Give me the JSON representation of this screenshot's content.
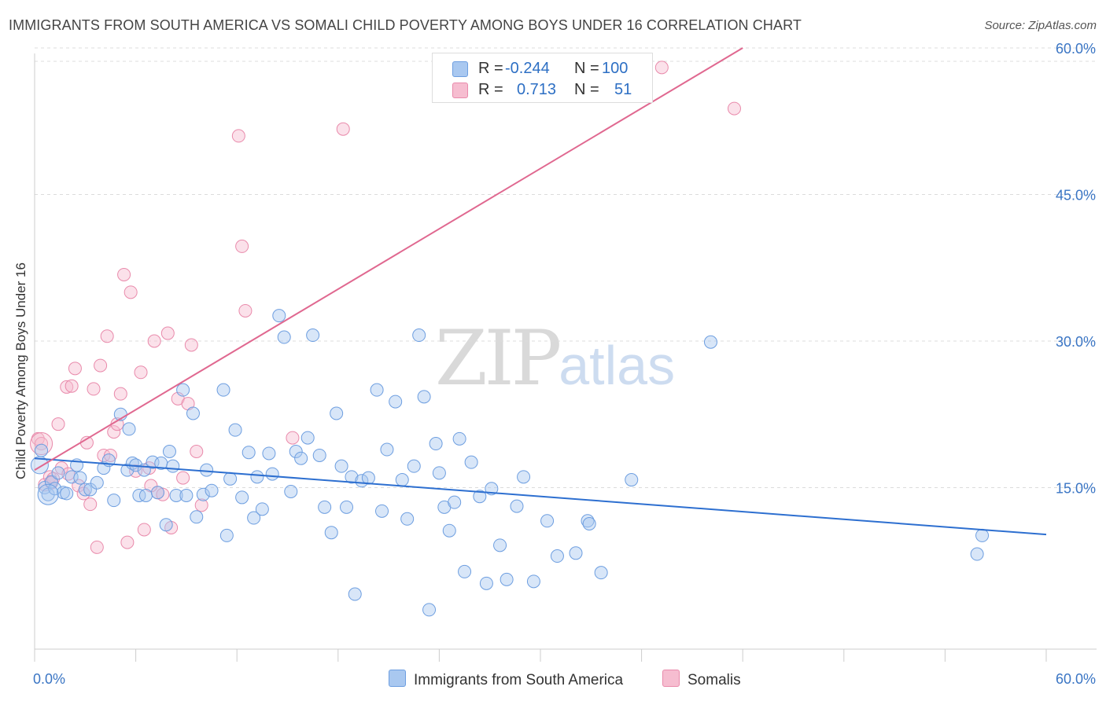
{
  "header": {
    "title": "IMMIGRANTS FROM SOUTH AMERICA VS SOMALI CHILD POVERTY AMONG BOYS UNDER 16 CORRELATION CHART",
    "source": "Source: ZipAtlas.com"
  },
  "watermark": {
    "zip": "ZIP",
    "atlas": "atlas"
  },
  "legend": {
    "r_label": "R =",
    "n_label": "N =",
    "rows": [
      {
        "r": "-0.244",
        "n": "100",
        "color": "#a9c8f0"
      },
      {
        "r": "0.713",
        "n": "51",
        "color": "#f6bdd0"
      }
    ]
  },
  "bottom_legend": [
    {
      "label": "Immigrants from South America",
      "color": "#a9c8f0"
    },
    {
      "label": "Somalis",
      "color": "#f6bdd0"
    }
  ],
  "chart_data": {
    "type": "scatter",
    "title": "IMMIGRANTS FROM SOUTH AMERICA VS SOMALI CHILD POVERTY AMONG BOYS UNDER 16 CORRELATION CHART",
    "xlabel": "",
    "ylabel": "Child Poverty Among Boys Under 16",
    "xlim": [
      0,
      60
    ],
    "ylim": [
      0,
      60
    ],
    "x_tick_labels": [
      "0.0%",
      "60.0%"
    ],
    "y_tick_labels": [
      "15.0%",
      "30.0%",
      "45.0%",
      "60.0%"
    ],
    "y_ticks": [
      15,
      30,
      45,
      60
    ],
    "x_minor_ticks": [
      0,
      6,
      12,
      18,
      24,
      30,
      36,
      42,
      48,
      54,
      60
    ],
    "grid": true,
    "legend_position": "top-center",
    "colors": {
      "blue_point": "#a9c8f0",
      "blue_edge": "#6d9ee0",
      "blue_line": "#2d6fd0",
      "pink_point": "#f6bdd0",
      "pink_edge": "#e98aab",
      "pink_line": "#e06890",
      "tick_label": "#3a75c4"
    },
    "series": [
      {
        "name": "Immigrants from South America",
        "r": -0.244,
        "n": 100,
        "trend": {
          "x0": 0,
          "y0": 18.0,
          "x1": 60,
          "y1": 10.2
        },
        "points": [
          [
            0.4,
            18.8
          ],
          [
            0.6,
            15.0
          ],
          [
            0.8,
            14.3
          ],
          [
            1.0,
            15.6
          ],
          [
            1.2,
            14.9
          ],
          [
            1.4,
            16.5
          ],
          [
            1.7,
            14.5
          ],
          [
            1.9,
            14.4
          ],
          [
            2.2,
            16.1
          ],
          [
            2.5,
            17.3
          ],
          [
            2.7,
            16.0
          ],
          [
            3.0,
            14.8
          ],
          [
            3.3,
            14.8
          ],
          [
            3.7,
            15.5
          ],
          [
            4.1,
            17.0
          ],
          [
            4.4,
            17.8
          ],
          [
            4.7,
            13.7
          ],
          [
            5.1,
            22.5
          ],
          [
            5.5,
            16.8
          ],
          [
            5.6,
            21.0
          ],
          [
            5.8,
            17.5
          ],
          [
            6.0,
            17.3
          ],
          [
            6.2,
            14.2
          ],
          [
            6.5,
            16.8
          ],
          [
            6.6,
            14.2
          ],
          [
            7.0,
            17.6
          ],
          [
            7.3,
            14.5
          ],
          [
            7.5,
            17.5
          ],
          [
            7.8,
            11.2
          ],
          [
            8.0,
            18.7
          ],
          [
            8.2,
            17.2
          ],
          [
            8.4,
            14.2
          ],
          [
            8.8,
            25.0
          ],
          [
            9.0,
            14.2
          ],
          [
            9.4,
            22.6
          ],
          [
            9.6,
            12.0
          ],
          [
            10.0,
            14.3
          ],
          [
            10.2,
            16.8
          ],
          [
            10.5,
            14.7
          ],
          [
            11.2,
            25.0
          ],
          [
            11.4,
            10.1
          ],
          [
            11.6,
            15.9
          ],
          [
            11.9,
            20.9
          ],
          [
            12.3,
            14.0
          ],
          [
            12.7,
            18.6
          ],
          [
            13.0,
            11.9
          ],
          [
            13.2,
            16.1
          ],
          [
            13.5,
            12.8
          ],
          [
            13.9,
            18.5
          ],
          [
            14.1,
            16.4
          ],
          [
            14.5,
            32.6
          ],
          [
            14.8,
            30.4
          ],
          [
            15.2,
            14.6
          ],
          [
            15.5,
            18.7
          ],
          [
            15.8,
            18.0
          ],
          [
            16.2,
            20.1
          ],
          [
            16.5,
            30.6
          ],
          [
            16.9,
            18.3
          ],
          [
            17.2,
            13.0
          ],
          [
            17.6,
            10.4
          ],
          [
            17.9,
            22.6
          ],
          [
            18.2,
            17.2
          ],
          [
            18.5,
            13.0
          ],
          [
            18.8,
            16.1
          ],
          [
            19.0,
            4.1
          ],
          [
            19.4,
            15.7
          ],
          [
            19.8,
            16.0
          ],
          [
            20.3,
            25.0
          ],
          [
            20.6,
            12.6
          ],
          [
            20.9,
            18.9
          ],
          [
            21.4,
            23.8
          ],
          [
            21.8,
            15.8
          ],
          [
            22.1,
            11.8
          ],
          [
            22.5,
            17.2
          ],
          [
            22.8,
            30.6
          ],
          [
            23.1,
            24.3
          ],
          [
            23.4,
            2.5
          ],
          [
            23.8,
            19.5
          ],
          [
            24.0,
            16.5
          ],
          [
            24.3,
            13.0
          ],
          [
            24.6,
            10.6
          ],
          [
            24.9,
            13.5
          ],
          [
            25.2,
            20.0
          ],
          [
            25.5,
            6.4
          ],
          [
            25.9,
            17.6
          ],
          [
            26.4,
            14.1
          ],
          [
            26.8,
            5.2
          ],
          [
            27.1,
            14.9
          ],
          [
            27.6,
            9.1
          ],
          [
            28.0,
            5.6
          ],
          [
            28.6,
            13.1
          ],
          [
            29.0,
            16.1
          ],
          [
            29.6,
            5.4
          ],
          [
            30.4,
            11.6
          ],
          [
            31.0,
            8.0
          ],
          [
            32.1,
            8.3
          ],
          [
            32.8,
            11.6
          ],
          [
            33.6,
            6.3
          ],
          [
            35.4,
            15.8
          ],
          [
            55.9,
            8.2
          ]
        ],
        "extra_points": [
          [
            40.1,
            29.9
          ],
          [
            32.9,
            11.3
          ],
          [
            56.2,
            10.1
          ]
        ]
      },
      {
        "name": "Somalis",
        "r": 0.713,
        "n": 51,
        "trend": {
          "x0": 0,
          "y0": 16.8,
          "x1": 42,
          "y1": 60.0
        },
        "points": [
          [
            0.2,
            20.0
          ],
          [
            0.4,
            19.5
          ],
          [
            0.6,
            15.3
          ],
          [
            0.9,
            16.1
          ],
          [
            1.1,
            15.9
          ],
          [
            1.4,
            21.5
          ],
          [
            1.6,
            17.0
          ],
          [
            1.9,
            25.3
          ],
          [
            2.2,
            25.4
          ],
          [
            2.4,
            27.2
          ],
          [
            2.6,
            15.2
          ],
          [
            2.9,
            14.4
          ],
          [
            3.1,
            19.6
          ],
          [
            3.3,
            13.3
          ],
          [
            3.5,
            25.1
          ],
          [
            3.7,
            8.9
          ],
          [
            3.9,
            27.5
          ],
          [
            4.1,
            18.3
          ],
          [
            4.3,
            30.5
          ],
          [
            4.5,
            18.3
          ],
          [
            4.7,
            20.7
          ],
          [
            4.9,
            21.5
          ],
          [
            5.1,
            24.6
          ],
          [
            5.3,
            36.8
          ],
          [
            5.5,
            9.4
          ],
          [
            5.7,
            35.0
          ],
          [
            6.0,
            16.7
          ],
          [
            6.3,
            26.8
          ],
          [
            6.5,
            10.7
          ],
          [
            6.8,
            17.0
          ],
          [
            7.1,
            30.0
          ],
          [
            7.3,
            14.5
          ],
          [
            7.6,
            14.3
          ],
          [
            7.9,
            30.8
          ],
          [
            8.1,
            10.9
          ],
          [
            8.5,
            24.1
          ],
          [
            8.8,
            16.0
          ],
          [
            9.1,
            23.6
          ],
          [
            9.3,
            29.6
          ],
          [
            9.6,
            18.7
          ],
          [
            9.9,
            13.2
          ],
          [
            12.1,
            51.0
          ],
          [
            12.3,
            39.7
          ],
          [
            12.5,
            33.1
          ],
          [
            15.3,
            20.1
          ],
          [
            18.3,
            51.7
          ],
          [
            37.2,
            58.0
          ],
          [
            41.5,
            53.8
          ],
          [
            1.0,
            15.5
          ],
          [
            2.0,
            16.4
          ],
          [
            6.9,
            15.2
          ]
        ]
      }
    ]
  }
}
